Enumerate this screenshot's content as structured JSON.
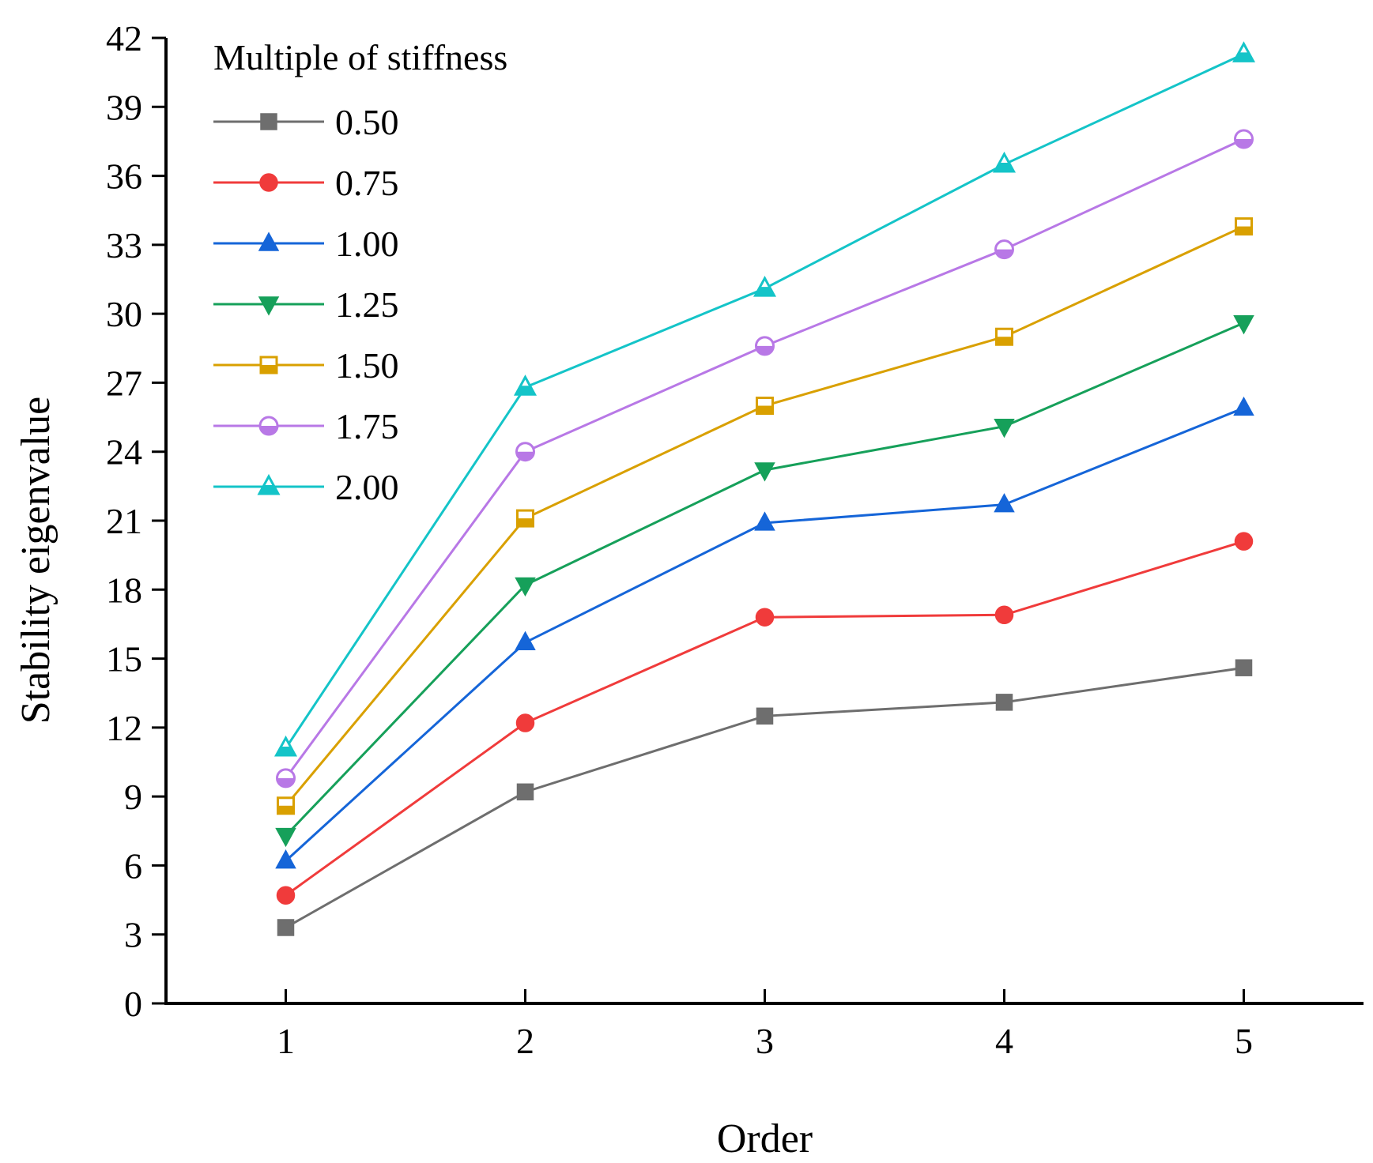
{
  "chart_data": {
    "type": "line",
    "title": "",
    "xlabel": "Order",
    "ylabel": "Stability eigenvalue",
    "x": [
      1,
      2,
      3,
      4,
      5
    ],
    "x_ticks": [
      "1",
      "2",
      "3",
      "4",
      "5"
    ],
    "xlim": [
      0.5,
      5.5
    ],
    "ylim": [
      0,
      42
    ],
    "y_ticks": [
      0,
      3,
      6,
      9,
      12,
      15,
      18,
      21,
      24,
      27,
      30,
      33,
      36,
      39,
      42
    ],
    "grid": false,
    "legend": {
      "title": "Multiple of stiffness",
      "placement": "top-left"
    },
    "series": [
      {
        "name": "0.50",
        "color": "#6e6e6e",
        "marker": "square-filled",
        "values": [
          3.3,
          9.2,
          12.5,
          13.1,
          14.6
        ]
      },
      {
        "name": "0.75",
        "color": "#f03b3b",
        "marker": "circle-filled",
        "values": [
          4.7,
          12.2,
          16.8,
          16.9,
          20.1
        ]
      },
      {
        "name": "1.00",
        "color": "#1565d8",
        "marker": "triangle-up-filled",
        "values": [
          6.2,
          15.7,
          20.9,
          21.7,
          25.9
        ]
      },
      {
        "name": "1.25",
        "color": "#16a05a",
        "marker": "triangle-down-filled",
        "values": [
          7.3,
          18.2,
          23.2,
          25.1,
          29.6
        ]
      },
      {
        "name": "1.50",
        "color": "#d9a000",
        "marker": "square-half",
        "values": [
          8.6,
          21.1,
          26.0,
          29.0,
          33.8
        ]
      },
      {
        "name": "1.75",
        "color": "#b878e6",
        "marker": "circle-half",
        "values": [
          9.8,
          24.0,
          28.6,
          32.8,
          37.6
        ]
      },
      {
        "name": "2.00",
        "color": "#14c4c8",
        "marker": "triangle-up-half",
        "values": [
          11.1,
          26.8,
          31.1,
          36.5,
          41.3
        ]
      }
    ]
  }
}
